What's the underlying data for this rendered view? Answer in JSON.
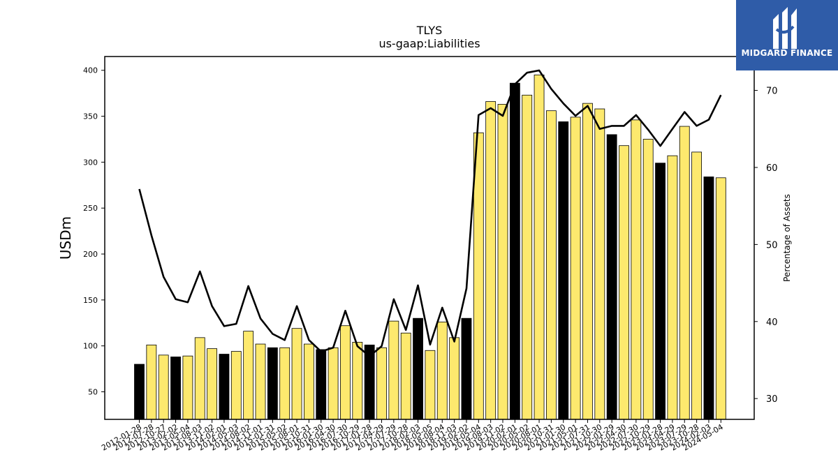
{
  "brand": {
    "name": "MIDGARD FINANCE",
    "color": "#2f5ca8"
  },
  "chart_data": {
    "type": "bar",
    "title": "TLYS",
    "subtitle": "us-gaap:Liabilities",
    "ylabel": "USDm",
    "y2label": "Percentage of Assets",
    "ylim": [
      20,
      415
    ],
    "y2lim": [
      27.3,
      74.4
    ],
    "yticks": [
      50,
      100,
      150,
      200,
      250,
      300,
      350,
      400
    ],
    "y2ticks": [
      30,
      40,
      50,
      60,
      70
    ],
    "colors": {
      "annual": "#000000",
      "quarterly": "#fde96e",
      "line": "#000000"
    },
    "categories": [
      "2012-01-28",
      "2012-07-28",
      "2012-10-27",
      "2013-02-02",
      "2013-05-04",
      "2013-08-03",
      "2013-11-02",
      "2014-02-01",
      "2014-05-03",
      "2014-08-02",
      "2014-11-01",
      "2015-01-31",
      "2015-05-02",
      "2015-08-01",
      "2015-10-31",
      "2016-01-30",
      "2016-04-30",
      "2016-07-30",
      "2016-10-29",
      "2017-01-28",
      "2017-04-29",
      "2017-07-29",
      "2017-10-28",
      "2018-02-03",
      "2018-05-05",
      "2018-08-04",
      "2018-11-03",
      "2019-02-02",
      "2019-05-04",
      "2019-08-03",
      "2019-11-02",
      "2020-02-01",
      "2020-05-02",
      "2020-08-01",
      "2020-10-31",
      "2021-01-30",
      "2021-05-01",
      "2021-07-31",
      "2021-10-30",
      "2022-01-29",
      "2022-04-30",
      "2022-07-30",
      "2022-10-29",
      "2023-01-28",
      "2023-04-29",
      "2023-07-29",
      "2023-10-28",
      "2024-02-03",
      "2024-05-04"
    ],
    "series": [
      {
        "values": [
          80,
          101,
          90,
          88,
          89,
          109,
          97,
          91,
          94,
          116,
          102,
          98,
          98,
          119,
          102,
          96,
          98,
          122,
          104,
          101,
          98,
          127,
          114,
          130,
          95,
          126,
          109,
          130,
          332,
          366,
          363,
          386,
          373,
          395,
          356,
          344,
          349,
          364,
          358,
          330,
          318,
          346,
          325,
          299,
          307,
          339,
          311,
          284,
          283
        ],
        "annual": [
          true,
          false,
          false,
          true,
          false,
          false,
          false,
          true,
          false,
          false,
          false,
          true,
          false,
          false,
          false,
          true,
          false,
          false,
          false,
          true,
          false,
          false,
          false,
          true,
          false,
          false,
          false,
          true,
          false,
          false,
          false,
          true,
          false,
          false,
          false,
          true,
          false,
          false,
          false,
          true,
          false,
          false,
          false,
          true,
          false,
          false,
          false,
          true,
          false
        ]
      },
      {
        "values": [
          57.2,
          51.2,
          45.8,
          42.9,
          42.5,
          46.5,
          42.0,
          39.4,
          39.7,
          44.6,
          40.4,
          38.4,
          37.6,
          42.0,
          37.6,
          36.1,
          36.6,
          41.4,
          36.8,
          35.5,
          36.8,
          42.9,
          38.9,
          44.7,
          37.0,
          41.8,
          37.4,
          44.3,
          66.8,
          67.7,
          66.7,
          70.8,
          72.3,
          72.6,
          70.2,
          68.3,
          66.7,
          68.0,
          65.0,
          65.4,
          65.4,
          66.8,
          64.9,
          62.8,
          65.0,
          67.2,
          65.4,
          66.2,
          69.4
        ]
      }
    ]
  }
}
